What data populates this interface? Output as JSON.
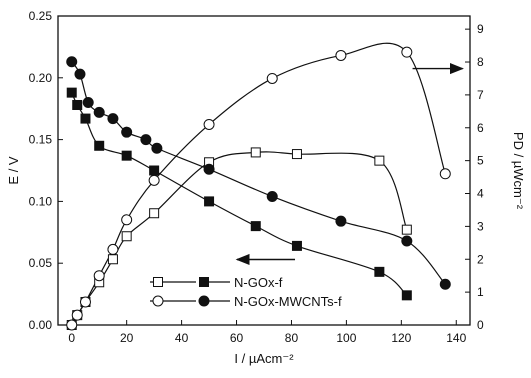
{
  "chart_data": {
    "type": "line",
    "xlabel": "I / µAcm⁻²",
    "ylabel": "E / V",
    "y2label": "PD / µWcm⁻²",
    "xlim": [
      -5,
      145
    ],
    "ylim": [
      0,
      0.25
    ],
    "y2lim": [
      0,
      9.4
    ],
    "xticks": [
      "0",
      "20",
      "40",
      "60",
      "80",
      "100",
      "120",
      "140"
    ],
    "yticks": [
      "0.00",
      "0.05",
      "0.10",
      "0.15",
      "0.20",
      "0.25"
    ],
    "y2ticks": [
      "0",
      "1",
      "2",
      "3",
      "4",
      "5",
      "6",
      "7",
      "8",
      "9"
    ],
    "legend": {
      "placement": "bottom-center",
      "entries": [
        "N-GOx-f",
        "N-GOx-MWCNTs-f"
      ]
    },
    "series": [
      {
        "name": "N-GOx-f",
        "kind": "polarization",
        "axis": "left",
        "marker": "filled-square",
        "x": [
          0,
          2,
          5,
          10,
          20,
          30,
          50,
          67,
          82,
          112,
          122
        ],
        "y": [
          0.188,
          0.178,
          0.167,
          0.145,
          0.137,
          0.125,
          0.1,
          0.08,
          0.064,
          0.043,
          0.024
        ]
      },
      {
        "name": "N-GOx-f",
        "kind": "power-density",
        "axis": "right",
        "marker": "open-square",
        "x": [
          0,
          2,
          5,
          10,
          15,
          20,
          30,
          50,
          67,
          82,
          112,
          122
        ],
        "y": [
          0.0,
          0.3,
          0.7,
          1.3,
          2.0,
          2.7,
          3.4,
          4.95,
          5.25,
          5.2,
          5.0,
          2.9
        ]
      },
      {
        "name": "N-GOx-MWCNTs-f",
        "kind": "polarization",
        "axis": "left",
        "marker": "filled-circle",
        "x": [
          0,
          3,
          6,
          10,
          15,
          20,
          27,
          31,
          50,
          73,
          98,
          122,
          136
        ],
        "y": [
          0.213,
          0.203,
          0.18,
          0.172,
          0.167,
          0.156,
          0.15,
          0.143,
          0.126,
          0.104,
          0.084,
          0.068,
          0.033
        ]
      },
      {
        "name": "N-GOx-MWCNTs-f",
        "kind": "power-density",
        "axis": "right",
        "marker": "open-circle",
        "x": [
          0,
          2,
          5,
          10,
          15,
          20,
          30,
          50,
          73,
          98,
          122,
          136
        ],
        "y": [
          0.0,
          0.3,
          0.7,
          1.5,
          2.3,
          3.2,
          4.4,
          6.1,
          7.5,
          8.2,
          8.3,
          4.6
        ]
      }
    ],
    "arrows": [
      {
        "points_to": "right",
        "at_x": 127,
        "at_y2": 7.8
      },
      {
        "points_to": "left",
        "at_x": 66,
        "at_y": 0.053
      }
    ]
  }
}
